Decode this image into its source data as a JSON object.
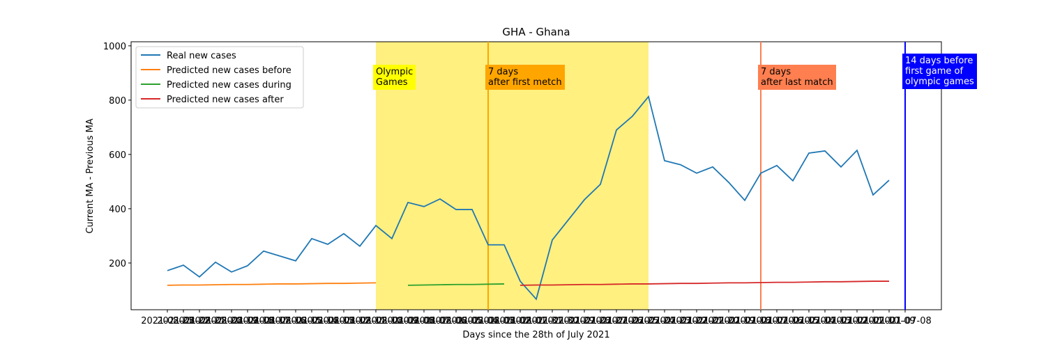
{
  "chart_data": {
    "type": "line",
    "title": "GHA - Ghana",
    "x_label": "Days since the 28th of July 2021",
    "y_label": "Current MA - Previous MA",
    "categories": [
      "2021-08-23",
      "2021-08-22",
      "2021-08-21",
      "2021-08-20",
      "2021-08-19",
      "2021-08-18",
      "2021-08-17",
      "2021-08-16",
      "2021-08-15",
      "2021-08-14",
      "2021-08-13",
      "2021-08-12",
      "2021-08-11",
      "2021-08-10",
      "2021-08-09",
      "2021-08-08",
      "2021-08-07",
      "2021-08-06",
      "2021-08-05",
      "2021-08-04",
      "2021-08-03",
      "2021-08-02",
      "2021-08-01",
      "2021-07-31",
      "2021-07-30",
      "2021-07-29",
      "2021-07-28",
      "2021-07-27",
      "2021-07-26",
      "2021-07-25",
      "2021-07-24",
      "2021-07-23",
      "2021-07-22",
      "2021-07-21",
      "2021-07-20",
      "2021-07-19",
      "2021-07-18",
      "2021-07-17",
      "2021-07-16",
      "2021-07-15",
      "2021-07-14",
      "2021-07-13",
      "2021-07-12",
      "2021-07-11",
      "2021-07-10",
      "2021-07-09",
      "2021-07-08"
    ],
    "series": [
      {
        "name": "Real new cases",
        "color": "#1f77b4",
        "values": [
          172,
          192,
          149,
          203,
          167,
          190,
          244,
          226,
          208,
          290,
          269,
          308,
          262,
          338,
          290,
          423,
          408,
          436,
          397,
          397,
          267,
          267,
          133,
          67,
          285,
          359,
          433,
          490,
          690,
          741,
          813,
          577,
          562,
          531,
          554,
          497,
          431,
          531,
          559,
          503,
          605,
          613,
          554,
          615,
          451,
          505,
          null
        ]
      },
      {
        "name": "Predicted new cases before",
        "color": "#ff7f0e",
        "values": [
          118,
          119,
          119,
          120,
          121,
          121,
          122,
          123,
          123,
          124,
          125,
          125,
          126,
          127,
          null,
          null,
          null,
          null,
          null,
          null,
          null,
          null,
          null,
          null,
          null,
          null,
          null,
          null,
          null,
          null,
          null,
          null,
          null,
          null,
          null,
          null,
          null,
          null,
          null,
          null,
          null,
          null,
          null,
          null,
          null,
          null,
          null
        ]
      },
      {
        "name": "Predicted new cases during",
        "color": "#2ca02c",
        "values": [
          null,
          null,
          null,
          null,
          null,
          null,
          null,
          null,
          null,
          null,
          null,
          null,
          null,
          null,
          null,
          118,
          119,
          120,
          121,
          121,
          122,
          123,
          null,
          null,
          null,
          null,
          null,
          null,
          null,
          null,
          null,
          null,
          null,
          null,
          null,
          null,
          null,
          null,
          null,
          null,
          null,
          null,
          null,
          null,
          null,
          null,
          null
        ]
      },
      {
        "name": "Predicted new cases after",
        "color": "#d62728",
        "values": [
          null,
          null,
          null,
          null,
          null,
          null,
          null,
          null,
          null,
          null,
          null,
          null,
          null,
          null,
          null,
          null,
          null,
          null,
          null,
          null,
          null,
          null,
          118,
          119,
          119,
          120,
          121,
          121,
          122,
          123,
          123,
          124,
          125,
          125,
          126,
          127,
          127,
          128,
          129,
          129,
          130,
          131,
          131,
          132,
          133,
          133,
          null
        ]
      }
    ],
    "ylim": [
      28,
      1015
    ],
    "yticks": [
      200,
      400,
      600,
      800,
      1000
    ],
    "legend": "upper left",
    "spans": [
      {
        "from": "2021-08-10",
        "to": "2021-07-24",
        "color": "#fff080",
        "label": "Olympic\nGames",
        "label_color": "#ffff00",
        "text_color": "#000000"
      }
    ],
    "vlines": [
      {
        "at": "2021-08-03",
        "color": "#ffa500",
        "label": "7 days\nafter first metch",
        "text_color": "#000000"
      },
      {
        "at": "2021-07-17",
        "color": "#ff7f50",
        "label": "7 days\nafter last match",
        "text_color": "#000000"
      },
      {
        "at": "2021-07-08",
        "color": "#0000ff",
        "label": "14 days before\nfirst game of\nolympic games",
        "text_color": "#ffffff"
      }
    ]
  }
}
